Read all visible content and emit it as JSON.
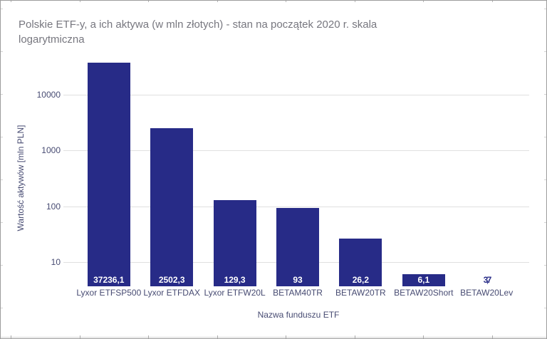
{
  "window": {
    "background": "#ffffff",
    "frame_color": "#9c9c9c"
  },
  "chart_data": {
    "type": "bar",
    "title": "Polskie ETF-y, a ich aktywa (w mln złotych) - stan na początek 2020 r. skala logarytmiczna",
    "title_lines": [
      "Polskie ETF-y, a ich aktywa (w mln złotych) - stan na początek 2020 r. skala",
      "logarytmiczna"
    ],
    "xlabel": "Nazwa funduszu ETF",
    "ylabel": "Wartość aktywów [mln PLN]",
    "categories": [
      "Lyxor ETFSP500",
      "Lyxor ETFDAX",
      "Lyxor ETFW20L",
      "BETAM40TR",
      "BETAW20TR",
      "BETAW20Short",
      "BETAW20Lev"
    ],
    "values": [
      37236.1,
      2502.3,
      129.3,
      93,
      26.2,
      6.1,
      3.7
    ],
    "value_labels": [
      "37236,1",
      "2502,3",
      "129,3",
      "93",
      "26,2",
      "6,1",
      "3,7"
    ],
    "yscale": "log",
    "yticks": [
      10,
      100,
      1000,
      10000
    ],
    "ytick_labels": [
      "10",
      "100",
      "1000",
      "10000"
    ],
    "ylim": [
      3.7,
      50000
    ],
    "grid": true,
    "legend": false,
    "colors": {
      "bar": "#272b87",
      "title_text": "#77777f",
      "axis_text": "#474b72",
      "value_label_inside": "#ffffff",
      "gridline": "#e0e0e0"
    }
  }
}
